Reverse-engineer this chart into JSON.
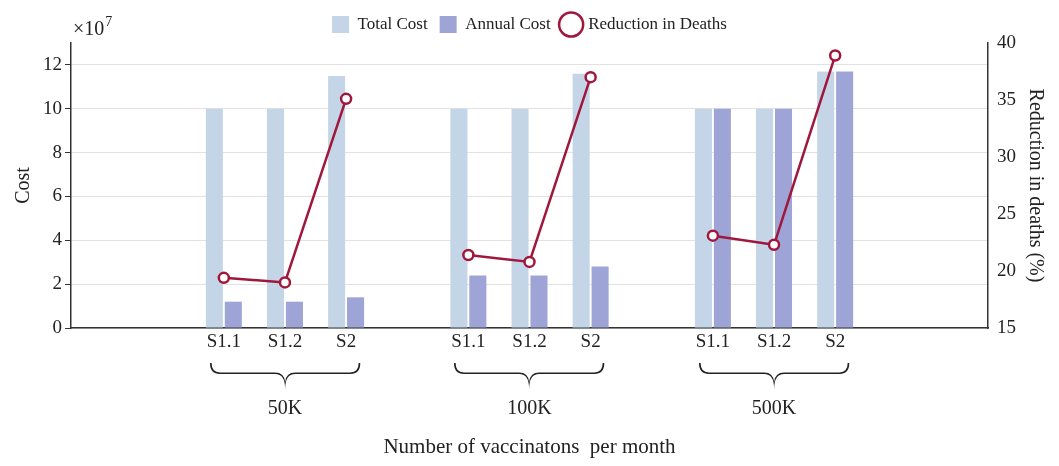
{
  "chart_data": {
    "type": "bar",
    "categories": [
      null,
      null,
      "S1.1",
      "S1.2",
      "S2",
      null,
      "S1.1",
      "S1.2",
      "S2",
      null,
      "S1.1",
      "S1.2",
      "S2",
      null,
      null
    ],
    "series": [
      {
        "name": "Total Cost",
        "color": "#c5d5e8",
        "values": [
          null,
          null,
          10,
          10,
          11.5,
          null,
          10,
          10,
          11.6,
          null,
          10,
          10,
          11.7,
          null,
          null
        ]
      },
      {
        "name": "Annual Cost",
        "color": "#9ea5d6",
        "values": [
          null,
          null,
          1.2,
          1.2,
          1.4,
          null,
          2.4,
          2.4,
          2.8,
          null,
          10,
          10,
          11.7,
          null,
          null
        ]
      },
      {
        "name": "Reduction in Deaths",
        "type": "line",
        "axis": "y2",
        "color": "#a0173c",
        "values": [
          null,
          null,
          19.4,
          19.0,
          35.1,
          null,
          21.4,
          20.8,
          37.0,
          null,
          23.1,
          22.3,
          38.9,
          null,
          null
        ]
      }
    ],
    "xlabel": "Number of vaccinatons  per month",
    "ylabel": "Cost",
    "y2label": "Reduction in deaths (%)",
    "ylim": [
      0,
      13
    ],
    "yticks": [
      0,
      2,
      4,
      6,
      8,
      10,
      12
    ],
    "y2lim": [
      15,
      40
    ],
    "y2ticks": [
      15,
      20,
      25,
      30,
      35,
      40
    ],
    "annotations": [
      "×10$^{7}$",
      "50K",
      "100K",
      "500K"
    ],
    "legend": "top",
    "grid": "y",
    "marker": "circle"
  }
}
